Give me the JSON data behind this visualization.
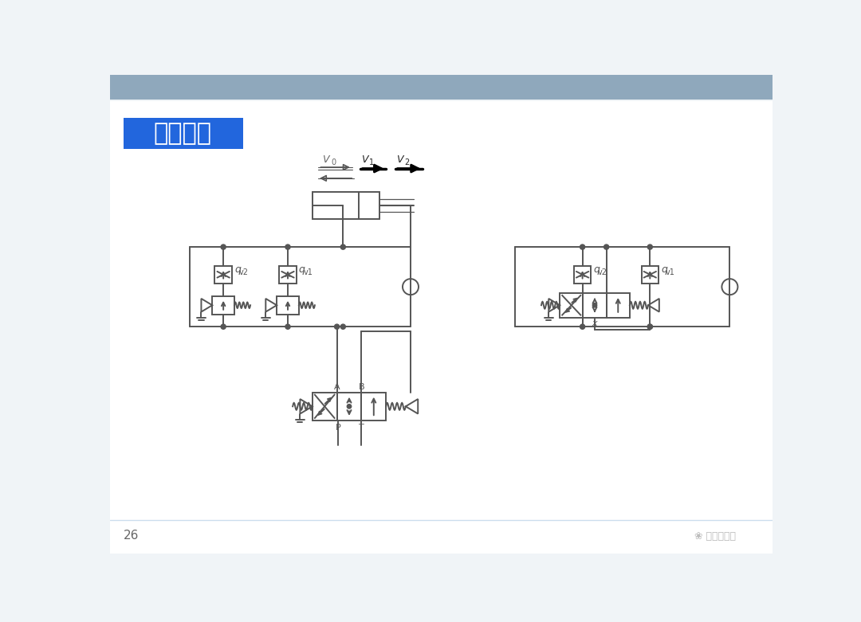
{
  "title": "调速回路",
  "header_color": "#8fa8bc",
  "bg_color": "#f0f4f7",
  "white_color": "#ffffff",
  "title_bg": "#2266dd",
  "title_fg": "#ffffff",
  "line_color": "#555555",
  "page_num": "26",
  "watermark": "液压那些事"
}
